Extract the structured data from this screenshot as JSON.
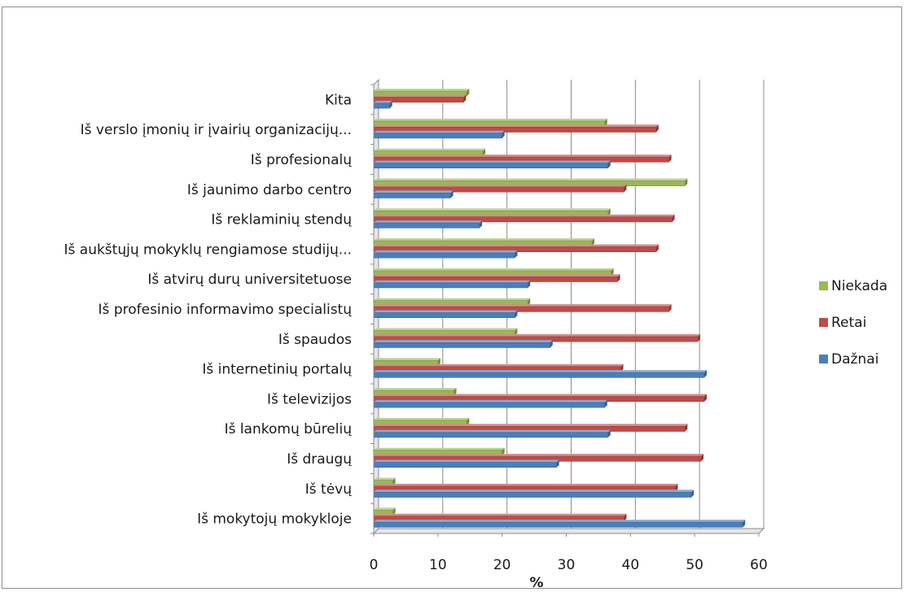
{
  "chart_data": {
    "type": "bar",
    "orientation": "horizontal",
    "categories": [
      "Iš mokytojų mokykloje",
      "Iš tėvų",
      "Iš draugų",
      "Iš lankomų būrelių",
      "Iš televizijos",
      "Iš internetinių portalų",
      "Iš spaudos",
      "Iš profesinio informavimo specialistų",
      "Iš atvirų durų universitetuose",
      "Iš aukštųjų mokyklų rengiamose studijų...",
      "Iš reklaminių stendų",
      "Iš jaunimo darbo centro",
      "Iš profesionalų",
      "Iš verslo įmonių ir įvairių organizacijų...",
      "Kita"
    ],
    "series": [
      {
        "name": "Dažnai",
        "color": "#4a7ebb",
        "values": [
          57.5,
          49.5,
          28.5,
          36.5,
          36,
          51.5,
          27.5,
          22,
          24,
          22,
          16.5,
          12,
          36.5,
          20,
          2.5
        ]
      },
      {
        "name": "Retai",
        "color": "#be4b48",
        "values": [
          39,
          47,
          51,
          48.5,
          51.5,
          38.5,
          50.5,
          46,
          38,
          44,
          46.5,
          39,
          46,
          44,
          14
        ]
      },
      {
        "name": "Niekada",
        "color": "#98b954",
        "values": [
          3,
          3,
          20,
          14.5,
          12.5,
          10,
          22,
          24,
          37,
          34,
          36.5,
          48.5,
          17,
          36,
          14.5
        ]
      }
    ],
    "xlim": [
      0,
      60
    ],
    "x_ticks": [
      0,
      10,
      20,
      30,
      40,
      50,
      60
    ],
    "xlabel": "%",
    "title": "",
    "grid": true,
    "legend_position": "right"
  }
}
